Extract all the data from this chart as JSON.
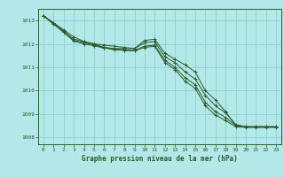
{
  "title": "Graphe pression niveau de la mer (hPa)",
  "background_color": "#b2e8e8",
  "grid_color": "#8fcfcf",
  "line_color": "#2d5a2d",
  "xlim": [
    -0.5,
    23.5
  ],
  "ylim": [
    1007.7,
    1013.5
  ],
  "yticks": [
    1008,
    1009,
    1010,
    1011,
    1012,
    1013
  ],
  "xticks": [
    0,
    1,
    2,
    3,
    4,
    5,
    6,
    7,
    8,
    9,
    10,
    11,
    12,
    13,
    14,
    15,
    16,
    17,
    18,
    19,
    20,
    21,
    22,
    23
  ],
  "series": [
    [
      1013.2,
      1012.9,
      1012.6,
      1012.3,
      1012.1,
      1012.0,
      1011.95,
      1011.9,
      1011.85,
      1011.8,
      1012.15,
      1012.2,
      1011.6,
      1011.35,
      1011.1,
      1010.8,
      1010.0,
      1009.6,
      1009.1,
      1008.5,
      1008.45,
      1008.45,
      1008.45,
      1008.45
    ],
    [
      1013.2,
      1012.9,
      1012.55,
      1012.2,
      1012.1,
      1012.0,
      1011.85,
      1011.8,
      1011.8,
      1011.8,
      1012.05,
      1012.1,
      1011.45,
      1011.2,
      1010.8,
      1010.5,
      1009.8,
      1009.35,
      1009.05,
      1008.55,
      1008.45,
      1008.45,
      1008.45,
      1008.45
    ],
    [
      1013.2,
      1012.85,
      1012.5,
      1012.15,
      1012.05,
      1011.95,
      1011.85,
      1011.78,
      1011.75,
      1011.72,
      1011.9,
      1011.95,
      1011.3,
      1011.0,
      1010.55,
      1010.25,
      1009.5,
      1009.1,
      1008.85,
      1008.5,
      1008.45,
      1008.45,
      1008.45,
      1008.45
    ],
    [
      1013.2,
      1012.85,
      1012.5,
      1012.12,
      1012.0,
      1011.92,
      1011.82,
      1011.75,
      1011.72,
      1011.7,
      1011.85,
      1011.9,
      1011.2,
      1010.9,
      1010.4,
      1010.1,
      1009.35,
      1008.95,
      1008.72,
      1008.45,
      1008.42,
      1008.42,
      1008.42,
      1008.42
    ]
  ]
}
